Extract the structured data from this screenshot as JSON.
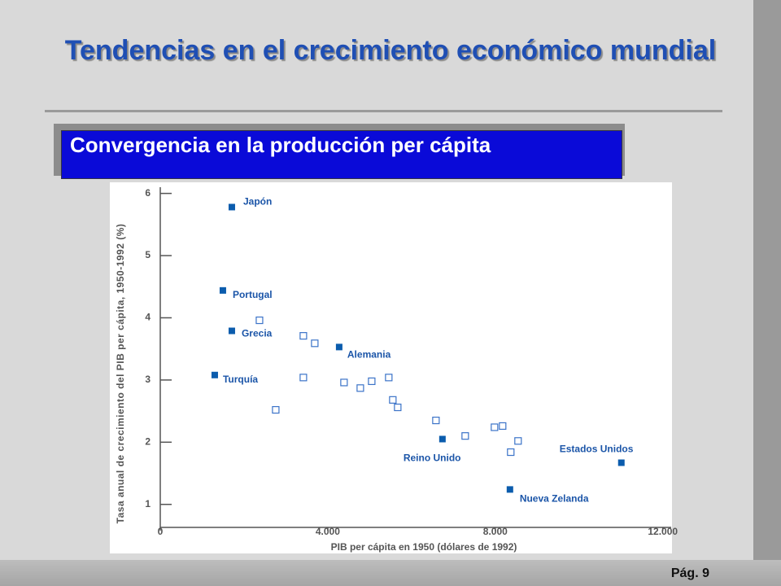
{
  "slide": {
    "title": "Tendencias en el crecimiento económico mundial",
    "subtitle": "Convergencia en la producción per cápita",
    "page": "Pág. 9"
  },
  "chart_data": {
    "type": "scatter",
    "xlabel": "PIB per cápita en 1950 (dólares de 1992)",
    "ylabel": "Tasa anual de crecimiento del PIB per cápita, 1950-1992 (%)",
    "xlim": [
      0,
      12200
    ],
    "ylim": [
      0.63,
      6.1
    ],
    "xticks": [
      0,
      {
        "value": 4000,
        "label": "4.000"
      },
      {
        "value": 8000,
        "label": "8.000"
      },
      {
        "value": 12000,
        "label": "12.000"
      }
    ],
    "yticks": [
      1,
      2,
      3,
      4,
      5,
      6
    ],
    "series": [
      {
        "color": "#0b5cad",
        "filled": true,
        "labels": [
          "Japón",
          "Portugal",
          "Grecia",
          "Turquía",
          "Alemania",
          "Reino Unido",
          "Estados Unidos",
          "Nueva Zelanda"
        ],
        "x": [
          1709,
          1495,
          1709,
          1301,
          4272,
          6738,
          11010,
          8350
        ],
        "values": [
          5.78,
          4.44,
          3.79,
          3.08,
          3.53,
          2.05,
          1.67,
          1.24
        ]
      },
      {
        "color": "#3b73c8",
        "filled": false,
        "x": [
          2369,
          2757,
          3417,
          3689,
          3417,
          4388,
          4777,
          5049,
          5456,
          5553,
          5670,
          6583,
          7282,
          7981,
          8175,
          8544,
          8369
        ],
        "values": [
          3.96,
          2.52,
          3.71,
          3.59,
          3.04,
          2.96,
          2.87,
          2.98,
          3.04,
          2.68,
          2.56,
          2.35,
          2.1,
          2.24,
          2.26,
          2.02,
          1.84
        ]
      }
    ]
  }
}
